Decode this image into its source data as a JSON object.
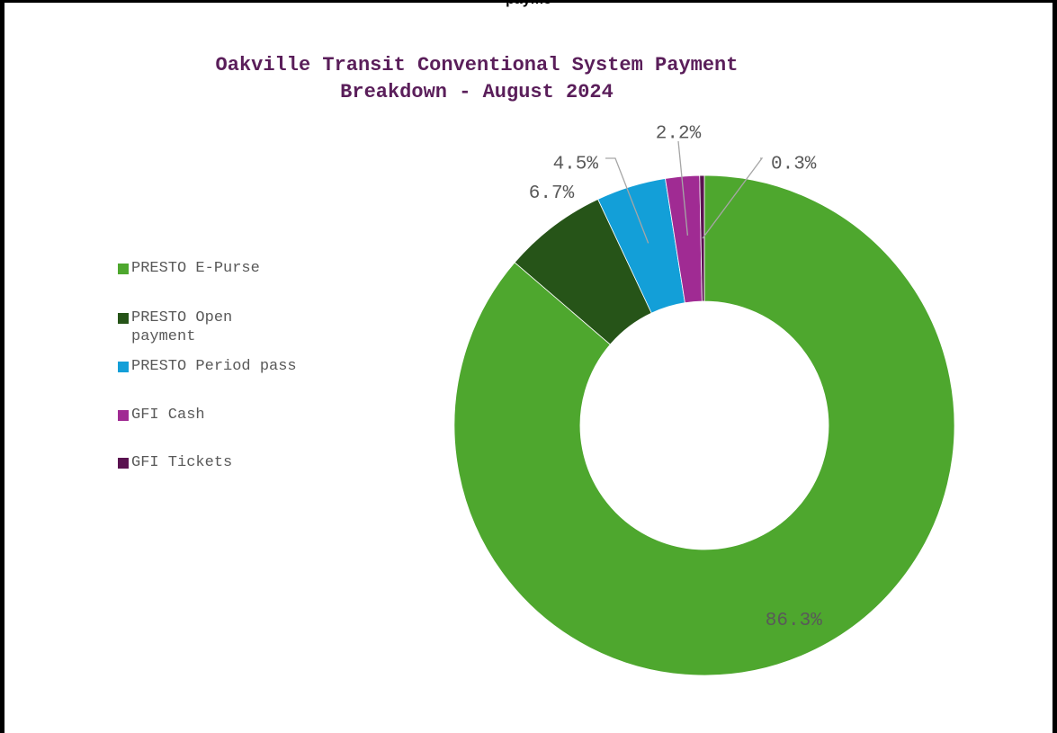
{
  "top_fragment": "payme",
  "chart_data": {
    "type": "pie",
    "variant": "doughnut",
    "title": "Oakville Transit Conventional System Payment Breakdown - August 2024",
    "title_lines": [
      "Oakville Transit Conventional System Payment",
      "Breakdown - August 2024"
    ],
    "title_color": "#5a1e5a",
    "legend_position": "left",
    "unit": "%",
    "series": [
      {
        "values": [
          86.3,
          6.7,
          4.5,
          2.2,
          0.3
        ],
        "labels": [
          "86.3%",
          "6.7%",
          "4.5%",
          "2.2%",
          "0.3%"
        ]
      }
    ],
    "categories": [
      "PRESTO E-Purse",
      "PRESTO Open payment",
      "PRESTO Period pass",
      "GFI Cash",
      "GFI Tickets"
    ],
    "colors": [
      "#4ea72e",
      "#265418",
      "#139fd8",
      "#a02b93",
      "#5a1250"
    ]
  }
}
